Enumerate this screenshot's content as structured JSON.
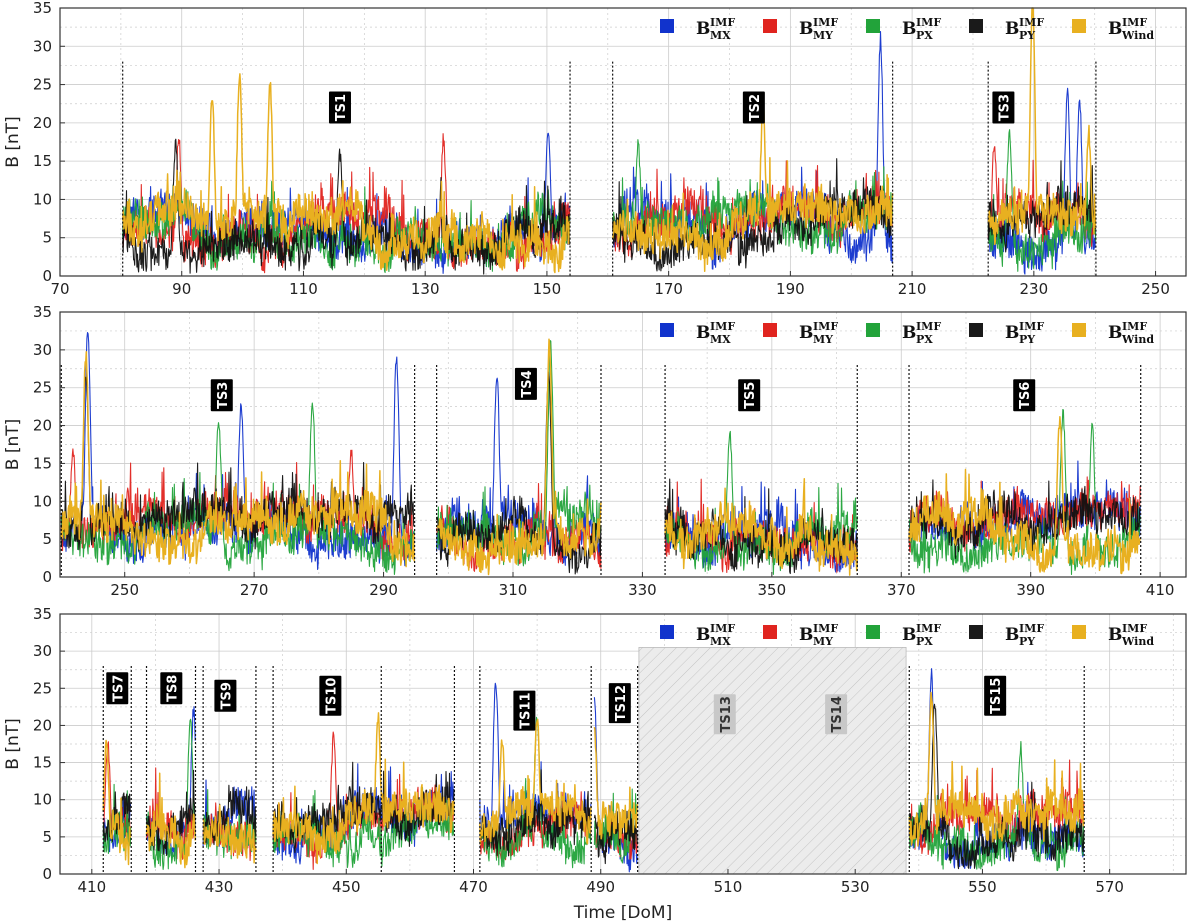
{
  "chart_data": [
    {
      "type": "line",
      "panel": "top",
      "xlabel": "",
      "ylabel": "B  [nT]",
      "xlim": [
        70,
        255
      ],
      "ylim": [
        0,
        35
      ],
      "x_ticks": [
        70,
        90,
        110,
        130,
        150,
        170,
        190,
        210,
        230,
        250
      ],
      "y_ticks": [
        0,
        5,
        10,
        15,
        20,
        25,
        30,
        35
      ],
      "grid": true,
      "legend_placement": "top",
      "segments": [
        [
          80.3,
          153.8
        ],
        [
          160.8,
          206.8
        ],
        [
          222.5,
          240.2
        ]
      ],
      "boundaries": [
        80.3,
        153.8,
        160.8,
        206.8,
        222.5,
        240.2
      ],
      "time_series_labels": [
        {
          "text": "TS1",
          "x": 116,
          "y": 22
        },
        {
          "text": "TS2",
          "x": 184,
          "y": 22
        },
        {
          "text": "TS3",
          "x": 225,
          "y": 22
        }
      ],
      "series": [
        {
          "name": "MX",
          "color": "#1133cc",
          "peaks": [
            [
              150.2,
              18
            ],
            [
              204.8,
              30
            ],
            [
              235.5,
              23
            ],
            [
              237.5,
              22
            ]
          ]
        },
        {
          "name": "MY",
          "color": "#e0241f",
          "peaks": [
            [
              89.5,
              17
            ],
            [
              133,
              17
            ],
            [
              223.5,
              16
            ]
          ]
        },
        {
          "name": "PX",
          "color": "#22a33a",
          "peaks": [
            [
              165,
              16
            ],
            [
              226,
              18
            ]
          ]
        },
        {
          "name": "PY",
          "color": "#111111",
          "peaks": [
            [
              89,
              16
            ],
            [
              116,
              15
            ]
          ]
        },
        {
          "name": "Wind",
          "color": "#e8b020",
          "peaks": [
            [
              95,
              22.5
            ],
            [
              99.5,
              25.7
            ],
            [
              104.5,
              24.3
            ],
            [
              185.5,
              21.5
            ],
            [
              229.8,
              35
            ],
            [
              239,
              18
            ]
          ]
        }
      ]
    },
    {
      "type": "line",
      "panel": "middle",
      "xlabel": "",
      "ylabel": "B  [nT]",
      "xlim": [
        240,
        414
      ],
      "ylim": [
        0,
        35
      ],
      "x_ticks": [
        250,
        270,
        290,
        310,
        330,
        350,
        370,
        390,
        410
      ],
      "y_ticks": [
        0,
        5,
        10,
        15,
        20,
        25,
        30,
        35
      ],
      "grid": true,
      "legend_placement": "top",
      "segments": [
        [
          240.2,
          294.8
        ],
        [
          298.2,
          323.6
        ],
        [
          333.5,
          363.2
        ],
        [
          371.2,
          407
        ]
      ],
      "boundaries": [
        240.2,
        294.8,
        298.2,
        323.6,
        333.5,
        363.2,
        371.2,
        407
      ],
      "time_series_labels": [
        {
          "text": "TS3",
          "x": 265,
          "y": 24
        },
        {
          "text": "TS4",
          "x": 312,
          "y": 25.5
        },
        {
          "text": "TS5",
          "x": 346.5,
          "y": 24
        },
        {
          "text": "TS6",
          "x": 389,
          "y": 24
        }
      ],
      "series": [
        {
          "name": "MX",
          "color": "#1133cc",
          "peaks": [
            [
              244.3,
              32
            ],
            [
              268,
              22
            ],
            [
              292,
              28.5
            ],
            [
              307.5,
              25.8
            ]
          ]
        },
        {
          "name": "MY",
          "color": "#e0241f",
          "peaks": [
            [
              242,
              16
            ],
            [
              285,
              16
            ]
          ]
        },
        {
          "name": "PX",
          "color": "#22a33a",
          "peaks": [
            [
              264.5,
              20
            ],
            [
              279,
              22
            ],
            [
              315.8,
              29.5
            ],
            [
              343.5,
              18
            ],
            [
              395,
              20.5
            ],
            [
              399.5,
              18.5
            ]
          ]
        },
        {
          "name": "PY",
          "color": "#111111",
          "peaks": [
            [
              244,
              26
            ],
            [
              315.5,
              26
            ]
          ]
        },
        {
          "name": "Wind",
          "color": "#e8b020",
          "peaks": [
            [
              244,
              28.5
            ],
            [
              315.6,
              29.5
            ],
            [
              394.5,
              19.5
            ]
          ]
        }
      ]
    },
    {
      "type": "line",
      "panel": "bottom",
      "xlabel": "Time  [DoM]",
      "ylabel": "B  [nT]",
      "xlim": [
        405,
        582
      ],
      "ylim": [
        0,
        35
      ],
      "x_ticks": [
        410,
        430,
        450,
        470,
        490,
        510,
        530,
        550,
        570
      ],
      "y_ticks": [
        0,
        5,
        10,
        15,
        20,
        25,
        30,
        35
      ],
      "grid": true,
      "legend_placement": "top-right",
      "segments": [
        [
          411.8,
          416.2
        ],
        [
          418.6,
          426.3
        ],
        [
          427.5,
          435.8
        ],
        [
          438.5,
          467
        ],
        [
          471,
          488.5
        ],
        [
          489,
          495.8
        ],
        [
          538.5,
          566
        ]
      ],
      "boundaries": [
        411.8,
        416.2,
        418.6,
        426.3,
        427.5,
        435.8,
        438.5,
        455.5,
        467,
        471,
        488.5,
        495.8,
        538.5,
        566
      ],
      "shaded_region": [
        496,
        538
      ],
      "time_series_labels": [
        {
          "text": "TS7",
          "x": 414,
          "y": 25
        },
        {
          "text": "TS8",
          "x": 422.5,
          "y": 25
        },
        {
          "text": "TS9",
          "x": 431,
          "y": 24
        },
        {
          "text": "TS10",
          "x": 447.5,
          "y": 24
        },
        {
          "text": "TS11",
          "x": 478,
          "y": 22
        },
        {
          "text": "TS12",
          "x": 493,
          "y": 23
        },
        {
          "text": "TS13",
          "x": 509.5,
          "y": 21.5,
          "gray": true
        },
        {
          "text": "TS14",
          "x": 527,
          "y": 21.5,
          "gray": true
        },
        {
          "text": "TS15",
          "x": 552,
          "y": 24
        }
      ],
      "series": [
        {
          "name": "MX",
          "color": "#1133cc",
          "peaks": [
            [
              473.5,
              25
            ],
            [
              489,
              22.5
            ],
            [
              542,
              25.7
            ],
            [
              426,
              21
            ]
          ]
        },
        {
          "name": "MY",
          "color": "#e0241f",
          "peaks": [
            [
              448,
              17.5
            ],
            [
              412.5,
              16.5
            ]
          ]
        },
        {
          "name": "PX",
          "color": "#22a33a",
          "peaks": [
            [
              480,
              20.5
            ],
            [
              556,
              16
            ],
            [
              425.5,
              20
            ]
          ]
        },
        {
          "name": "PY",
          "color": "#111111",
          "peaks": [
            [
              542.5,
              22
            ]
          ]
        },
        {
          "name": "Wind",
          "color": "#e8b020",
          "peaks": [
            [
              412.3,
              16.5
            ],
            [
              455,
              20
            ],
            [
              542,
              23.5
            ],
            [
              474.5,
              17
            ],
            [
              480,
              20
            ],
            [
              489,
              18
            ]
          ]
        }
      ]
    }
  ],
  "legend": [
    {
      "main": "B",
      "sup": "IMF",
      "sub": "MX",
      "color": "#1133cc"
    },
    {
      "main": "B",
      "sup": "IMF",
      "sub": "MY",
      "color": "#e0241f"
    },
    {
      "main": "B",
      "sup": "IMF",
      "sub": "PX",
      "color": "#22a33a"
    },
    {
      "main": "B",
      "sup": "IMF",
      "sub": "PY",
      "color": "#1a1a1a"
    },
    {
      "main": "B",
      "sup": "IMF",
      "sub": "Wind",
      "color": "#e8b020"
    }
  ],
  "colors": {
    "ts_box": "#000000",
    "ts_box_gray": "#c8c8c8",
    "shade": "#ececec",
    "grid": "#cccccc"
  }
}
